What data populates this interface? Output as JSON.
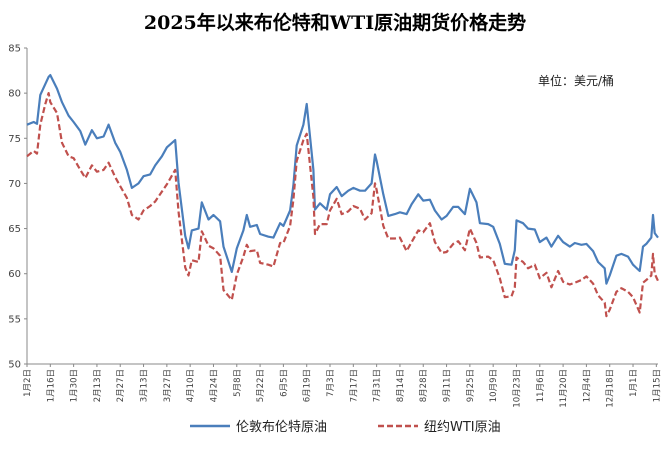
{
  "chart_data": {
    "type": "line",
    "title": "2025年以来布伦特和WTI原油期货价格走势",
    "unit": "单位：美元/桶",
    "ylim": [
      50,
      85
    ],
    "yticks": [
      50,
      55,
      60,
      65,
      70,
      75,
      80,
      85
    ],
    "xlim": [
      "2025-01-02",
      "2026-01-16"
    ],
    "x_tick_labels": [
      {
        "date": "2025-01-02",
        "label": "1月2日"
      },
      {
        "date": "2025-01-16",
        "label": "1月16日"
      },
      {
        "date": "2025-01-30",
        "label": "1月30日"
      },
      {
        "date": "2025-02-13",
        "label": "2月13日"
      },
      {
        "date": "2025-02-27",
        "label": "2月27日"
      },
      {
        "date": "2025-03-13",
        "label": "3月13日"
      },
      {
        "date": "2025-03-27",
        "label": "3月27日"
      },
      {
        "date": "2025-04-10",
        "label": "4月10日"
      },
      {
        "date": "2025-04-24",
        "label": "4月24日"
      },
      {
        "date": "2025-05-08",
        "label": "5月8日"
      },
      {
        "date": "2025-05-22",
        "label": "5月22日"
      },
      {
        "date": "2025-06-05",
        "label": "6月5日"
      },
      {
        "date": "2025-06-19",
        "label": "6月19日"
      },
      {
        "date": "2025-07-03",
        "label": "7月3日"
      },
      {
        "date": "2025-07-17",
        "label": "7月17日"
      },
      {
        "date": "2025-07-31",
        "label": "7月31日"
      },
      {
        "date": "2025-08-14",
        "label": "8月14日"
      },
      {
        "date": "2025-08-28",
        "label": "8月28日"
      },
      {
        "date": "2025-09-11",
        "label": "9月11日"
      },
      {
        "date": "2025-09-25",
        "label": "9月25日"
      },
      {
        "date": "2025-10-09",
        "label": "10月9日"
      },
      {
        "date": "2025-10-23",
        "label": "10月23日"
      },
      {
        "date": "2025-11-06",
        "label": "11月6日"
      },
      {
        "date": "2025-11-20",
        "label": "11月20日"
      },
      {
        "date": "2025-12-04",
        "label": "12月4日"
      },
      {
        "date": "2025-12-18",
        "label": "12月18日"
      },
      {
        "date": "2026-01-01",
        "label": "1月1日"
      },
      {
        "date": "2026-01-15",
        "label": "1月15日"
      }
    ],
    "legend_position": "bottom",
    "grid": false,
    "series": [
      {
        "name": "伦敦布伦特原油",
        "color": "#4a7ebb",
        "style": "solid",
        "points": [
          [
            "2025-01-02",
            76.5
          ],
          [
            "2025-01-06",
            76.8
          ],
          [
            "2025-01-08",
            76.6
          ],
          [
            "2025-01-10",
            79.8
          ],
          [
            "2025-01-13",
            81.0
          ],
          [
            "2025-01-15",
            81.8
          ],
          [
            "2025-01-16",
            82.0
          ],
          [
            "2025-01-20",
            80.5
          ],
          [
            "2025-01-23",
            79.0
          ],
          [
            "2025-01-27",
            77.5
          ],
          [
            "2025-01-30",
            76.8
          ],
          [
            "2025-02-03",
            75.8
          ],
          [
            "2025-02-06",
            74.3
          ],
          [
            "2025-02-10",
            75.9
          ],
          [
            "2025-02-13",
            75.0
          ],
          [
            "2025-02-17",
            75.2
          ],
          [
            "2025-02-20",
            76.5
          ],
          [
            "2025-02-24",
            74.5
          ],
          [
            "2025-02-27",
            73.5
          ],
          [
            "2025-03-03",
            71.5
          ],
          [
            "2025-03-06",
            69.5
          ],
          [
            "2025-03-10",
            70.0
          ],
          [
            "2025-03-13",
            70.8
          ],
          [
            "2025-03-17",
            71.0
          ],
          [
            "2025-03-20",
            72.0
          ],
          [
            "2025-03-24",
            73.0
          ],
          [
            "2025-03-27",
            74.0
          ],
          [
            "2025-04-01",
            74.8
          ],
          [
            "2025-04-03",
            70.1
          ],
          [
            "2025-04-07",
            64.2
          ],
          [
            "2025-04-09",
            62.8
          ],
          [
            "2025-04-11",
            64.8
          ],
          [
            "2025-04-15",
            65.0
          ],
          [
            "2025-04-17",
            67.9
          ],
          [
            "2025-04-21",
            66.0
          ],
          [
            "2025-04-24",
            66.5
          ],
          [
            "2025-04-28",
            65.8
          ],
          [
            "2025-04-30",
            63.0
          ],
          [
            "2025-05-05",
            60.2
          ],
          [
            "2025-05-08",
            62.8
          ],
          [
            "2025-05-12",
            64.8
          ],
          [
            "2025-05-14",
            66.5
          ],
          [
            "2025-05-16",
            65.2
          ],
          [
            "2025-05-20",
            65.4
          ],
          [
            "2025-05-22",
            64.4
          ],
          [
            "2025-05-27",
            64.1
          ],
          [
            "2025-05-30",
            64.0
          ],
          [
            "2025-06-03",
            65.6
          ],
          [
            "2025-06-05",
            65.3
          ],
          [
            "2025-06-09",
            67.0
          ],
          [
            "2025-06-11",
            69.8
          ],
          [
            "2025-06-13",
            74.2
          ],
          [
            "2025-06-17",
            76.5
          ],
          [
            "2025-06-19",
            78.8
          ],
          [
            "2025-06-23",
            71.5
          ],
          [
            "2025-06-24",
            67.1
          ],
          [
            "2025-06-27",
            67.8
          ],
          [
            "2025-07-01",
            67.1
          ],
          [
            "2025-07-03",
            68.8
          ],
          [
            "2025-07-07",
            69.6
          ],
          [
            "2025-07-10",
            68.6
          ],
          [
            "2025-07-14",
            69.2
          ],
          [
            "2025-07-17",
            69.5
          ],
          [
            "2025-07-21",
            69.2
          ],
          [
            "2025-07-24",
            69.2
          ],
          [
            "2025-07-28",
            70.0
          ],
          [
            "2025-07-30",
            73.2
          ],
          [
            "2025-07-31",
            72.5
          ],
          [
            "2025-08-04",
            68.8
          ],
          [
            "2025-08-07",
            66.4
          ],
          [
            "2025-08-11",
            66.6
          ],
          [
            "2025-08-14",
            66.8
          ],
          [
            "2025-08-18",
            66.6
          ],
          [
            "2025-08-21",
            67.7
          ],
          [
            "2025-08-25",
            68.8
          ],
          [
            "2025-08-28",
            68.1
          ],
          [
            "2025-09-01",
            68.2
          ],
          [
            "2025-09-04",
            67.0
          ],
          [
            "2025-09-08",
            66.0
          ],
          [
            "2025-09-11",
            66.4
          ],
          [
            "2025-09-15",
            67.4
          ],
          [
            "2025-09-18",
            67.4
          ],
          [
            "2025-09-22",
            66.6
          ],
          [
            "2025-09-25",
            69.4
          ],
          [
            "2025-09-29",
            67.9
          ],
          [
            "2025-10-01",
            65.6
          ],
          [
            "2025-10-06",
            65.5
          ],
          [
            "2025-10-09",
            65.2
          ],
          [
            "2025-10-13",
            63.3
          ],
          [
            "2025-10-16",
            61.1
          ],
          [
            "2025-10-20",
            61.0
          ],
          [
            "2025-10-22",
            62.6
          ],
          [
            "2025-10-23",
            65.9
          ],
          [
            "2025-10-27",
            65.6
          ],
          [
            "2025-10-30",
            65.0
          ],
          [
            "2025-11-03",
            64.9
          ],
          [
            "2025-11-06",
            63.5
          ],
          [
            "2025-11-10",
            64.0
          ],
          [
            "2025-11-13",
            63.0
          ],
          [
            "2025-11-17",
            64.2
          ],
          [
            "2025-11-20",
            63.5
          ],
          [
            "2025-11-24",
            63.0
          ],
          [
            "2025-11-27",
            63.4
          ],
          [
            "2025-12-01",
            63.2
          ],
          [
            "2025-12-04",
            63.3
          ],
          [
            "2025-12-08",
            62.5
          ],
          [
            "2025-12-11",
            61.3
          ],
          [
            "2025-12-15",
            60.6
          ],
          [
            "2025-12-16",
            58.9
          ],
          [
            "2025-12-18",
            59.8
          ],
          [
            "2025-12-22",
            62.0
          ],
          [
            "2025-12-25",
            62.2
          ],
          [
            "2025-12-29",
            61.9
          ],
          [
            "2026-01-01",
            61.0
          ],
          [
            "2026-01-05",
            60.3
          ],
          [
            "2026-01-07",
            63.0
          ],
          [
            "2026-01-09",
            63.3
          ],
          [
            "2026-01-12",
            64.0
          ],
          [
            "2026-01-13",
            66.5
          ],
          [
            "2026-01-14",
            64.5
          ],
          [
            "2026-01-16",
            64.0
          ]
        ]
      },
      {
        "name": "纽约WTI原油",
        "color": "#c0504d",
        "style": "dashed",
        "points": [
          [
            "2025-01-02",
            73.0
          ],
          [
            "2025-01-06",
            73.6
          ],
          [
            "2025-01-08",
            73.3
          ],
          [
            "2025-01-10",
            76.5
          ],
          [
            "2025-01-13",
            78.8
          ],
          [
            "2025-01-15",
            80.0
          ],
          [
            "2025-01-16",
            79.0
          ],
          [
            "2025-01-20",
            77.8
          ],
          [
            "2025-01-23",
            74.5
          ],
          [
            "2025-01-27",
            73.0
          ],
          [
            "2025-01-30",
            72.8
          ],
          [
            "2025-02-03",
            71.5
          ],
          [
            "2025-02-06",
            70.6
          ],
          [
            "2025-02-10",
            72.0
          ],
          [
            "2025-02-13",
            71.3
          ],
          [
            "2025-02-17",
            71.5
          ],
          [
            "2025-02-20",
            72.3
          ],
          [
            "2025-02-24",
            70.7
          ],
          [
            "2025-02-27",
            69.7
          ],
          [
            "2025-03-03",
            68.4
          ],
          [
            "2025-03-06",
            66.5
          ],
          [
            "2025-03-10",
            66.0
          ],
          [
            "2025-03-13",
            67.0
          ],
          [
            "2025-03-17",
            67.5
          ],
          [
            "2025-03-20",
            68.0
          ],
          [
            "2025-03-24",
            69.1
          ],
          [
            "2025-03-27",
            69.9
          ],
          [
            "2025-04-01",
            71.5
          ],
          [
            "2025-04-03",
            66.9
          ],
          [
            "2025-04-07",
            60.7
          ],
          [
            "2025-04-09",
            59.8
          ],
          [
            "2025-04-11",
            61.5
          ],
          [
            "2025-04-15",
            61.3
          ],
          [
            "2025-04-17",
            64.7
          ],
          [
            "2025-04-21",
            63.1
          ],
          [
            "2025-04-24",
            62.8
          ],
          [
            "2025-04-28",
            62.0
          ],
          [
            "2025-04-30",
            58.2
          ],
          [
            "2025-05-05",
            57.1
          ],
          [
            "2025-05-08",
            59.9
          ],
          [
            "2025-05-12",
            61.9
          ],
          [
            "2025-05-14",
            63.2
          ],
          [
            "2025-05-16",
            62.5
          ],
          [
            "2025-05-20",
            62.6
          ],
          [
            "2025-05-22",
            61.2
          ],
          [
            "2025-05-27",
            61.0
          ],
          [
            "2025-05-30",
            60.8
          ],
          [
            "2025-06-03",
            63.4
          ],
          [
            "2025-06-05",
            63.4
          ],
          [
            "2025-06-09",
            65.3
          ],
          [
            "2025-06-11",
            68.2
          ],
          [
            "2025-06-13",
            72.5
          ],
          [
            "2025-06-17",
            74.8
          ],
          [
            "2025-06-19",
            75.5
          ],
          [
            "2025-06-23",
            68.5
          ],
          [
            "2025-06-24",
            64.4
          ],
          [
            "2025-06-27",
            65.5
          ],
          [
            "2025-07-01",
            65.5
          ],
          [
            "2025-07-03",
            67.0
          ],
          [
            "2025-07-07",
            68.3
          ],
          [
            "2025-07-10",
            66.6
          ],
          [
            "2025-07-14",
            66.9
          ],
          [
            "2025-07-17",
            67.5
          ],
          [
            "2025-07-21",
            67.2
          ],
          [
            "2025-07-24",
            66.0
          ],
          [
            "2025-07-28",
            66.7
          ],
          [
            "2025-07-30",
            70.0
          ],
          [
            "2025-07-31",
            69.3
          ],
          [
            "2025-08-04",
            65.3
          ],
          [
            "2025-08-07",
            63.9
          ],
          [
            "2025-08-11",
            63.9
          ],
          [
            "2025-08-14",
            64.0
          ],
          [
            "2025-08-18",
            62.5
          ],
          [
            "2025-08-21",
            63.5
          ],
          [
            "2025-08-25",
            64.8
          ],
          [
            "2025-08-28",
            64.6
          ],
          [
            "2025-09-01",
            65.6
          ],
          [
            "2025-09-04",
            63.5
          ],
          [
            "2025-09-08",
            62.3
          ],
          [
            "2025-09-11",
            62.4
          ],
          [
            "2025-09-15",
            63.3
          ],
          [
            "2025-09-18",
            63.6
          ],
          [
            "2025-09-22",
            62.6
          ],
          [
            "2025-09-25",
            65.0
          ],
          [
            "2025-09-29",
            63.4
          ],
          [
            "2025-10-01",
            61.8
          ],
          [
            "2025-10-06",
            61.9
          ],
          [
            "2025-10-09",
            61.5
          ],
          [
            "2025-10-13",
            59.5
          ],
          [
            "2025-10-16",
            57.4
          ],
          [
            "2025-10-20",
            57.5
          ],
          [
            "2025-10-22",
            58.5
          ],
          [
            "2025-10-23",
            61.8
          ],
          [
            "2025-10-27",
            61.3
          ],
          [
            "2025-10-30",
            60.6
          ],
          [
            "2025-11-03",
            61.0
          ],
          [
            "2025-11-06",
            59.5
          ],
          [
            "2025-11-10",
            60.1
          ],
          [
            "2025-11-13",
            58.5
          ],
          [
            "2025-11-17",
            60.3
          ],
          [
            "2025-11-20",
            59.1
          ],
          [
            "2025-11-24",
            58.8
          ],
          [
            "2025-11-27",
            59.0
          ],
          [
            "2025-12-01",
            59.3
          ],
          [
            "2025-12-04",
            59.7
          ],
          [
            "2025-12-08",
            58.9
          ],
          [
            "2025-12-11",
            57.6
          ],
          [
            "2025-12-15",
            56.8
          ],
          [
            "2025-12-16",
            55.3
          ],
          [
            "2025-12-18",
            56.0
          ],
          [
            "2025-12-22",
            58.0
          ],
          [
            "2025-12-25",
            58.4
          ],
          [
            "2025-12-29",
            58.0
          ],
          [
            "2026-01-01",
            57.4
          ],
          [
            "2026-01-05",
            55.7
          ],
          [
            "2026-01-07",
            59.0
          ],
          [
            "2026-01-09",
            59.3
          ],
          [
            "2026-01-12",
            59.8
          ],
          [
            "2026-01-13",
            62.2
          ],
          [
            "2026-01-14",
            60.0
          ],
          [
            "2026-01-16",
            59.2
          ]
        ]
      }
    ]
  }
}
